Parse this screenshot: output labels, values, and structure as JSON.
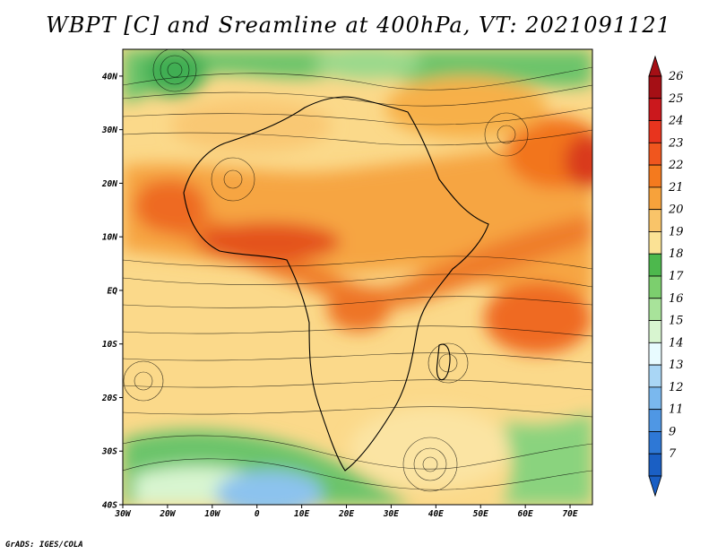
{
  "title": "WBPT [C] and Sreamline at 400hPa, VT: 2021091121",
  "footer": "GrADS: IGES/COLA",
  "map": {
    "lon_range": [
      -30,
      75
    ],
    "lat_range": [
      -40,
      45
    ],
    "lon_ticks": [
      "30W",
      "20W",
      "10W",
      "0",
      "10E",
      "20E",
      "30E",
      "40E",
      "50E",
      "60E",
      "70E"
    ],
    "lat_ticks": [
      "40N",
      "30N",
      "20N",
      "10N",
      "EQ",
      "10S",
      "20S",
      "30S",
      "40S"
    ]
  },
  "colorbar": {
    "labels": [
      "26",
      "25",
      "24",
      "23",
      "22",
      "21",
      "20",
      "19",
      "18",
      "17",
      "16",
      "15",
      "14",
      "13",
      "12",
      "11",
      "9",
      "7"
    ],
    "colors": [
      "#a50f15",
      "#cb181d",
      "#e8341e",
      "#f0561e",
      "#f47a1e",
      "#f7a23b",
      "#f9c469",
      "#fbe295",
      "#4db84d",
      "#7ccf6e",
      "#a8e39a",
      "#d8f5d0",
      "#e8fbff",
      "#a9d6f5",
      "#7ab8ee",
      "#4f97e4",
      "#2e78d6",
      "#1a5fc4"
    ]
  }
}
